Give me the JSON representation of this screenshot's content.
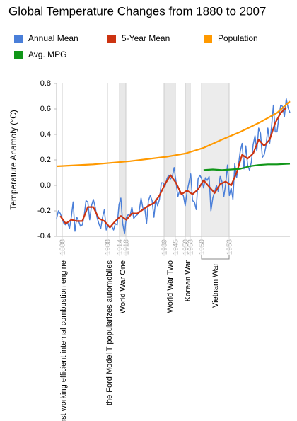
{
  "chart_data": {
    "type": "line",
    "title": "Global Temperature Changes from 1880 to 2007",
    "y_label": "Temperature Anamoly (°C)",
    "xlim": [
      1880,
      2007
    ],
    "ylim": [
      -0.4,
      0.8
    ],
    "yticks": [
      0.8,
      0.6,
      0.4,
      0.2,
      {
        "value": 0,
        "label": "0.0"
      },
      -0.2,
      -0.4
    ],
    "series": [
      {
        "name": "Annual Mean",
        "color": "#4a7fd9",
        "x": [
          1880,
          1881,
          1882,
          1883,
          1884,
          1885,
          1886,
          1887,
          1888,
          1889,
          1890,
          1891,
          1892,
          1893,
          1894,
          1895,
          1896,
          1897,
          1898,
          1899,
          1900,
          1901,
          1902,
          1903,
          1904,
          1905,
          1906,
          1907,
          1908,
          1909,
          1910,
          1911,
          1912,
          1913,
          1914,
          1915,
          1916,
          1917,
          1918,
          1919,
          1920,
          1921,
          1922,
          1923,
          1924,
          1925,
          1926,
          1927,
          1928,
          1929,
          1930,
          1931,
          1932,
          1933,
          1934,
          1935,
          1936,
          1937,
          1938,
          1939,
          1940,
          1941,
          1942,
          1943,
          1944,
          1945,
          1946,
          1947,
          1948,
          1949,
          1950,
          1951,
          1952,
          1953,
          1954,
          1955,
          1956,
          1957,
          1958,
          1959,
          1960,
          1961,
          1962,
          1963,
          1964,
          1965,
          1966,
          1967,
          1968,
          1969,
          1970,
          1971,
          1972,
          1973,
          1974,
          1975,
          1976,
          1977,
          1978,
          1979,
          1980,
          1981,
          1982,
          1983,
          1984,
          1985,
          1986,
          1987,
          1988,
          1989,
          1990,
          1991,
          1992,
          1993,
          1994,
          1995,
          1996,
          1997,
          1998,
          1999,
          2000,
          2001,
          2002,
          2003,
          2004,
          2005,
          2006,
          2007
        ],
        "values": [
          -0.26,
          -0.2,
          -0.22,
          -0.26,
          -0.3,
          -0.31,
          -0.29,
          -0.34,
          -0.25,
          -0.13,
          -0.36,
          -0.25,
          -0.28,
          -0.32,
          -0.31,
          -0.24,
          -0.12,
          -0.13,
          -0.27,
          -0.16,
          -0.11,
          -0.17,
          -0.25,
          -0.3,
          -0.34,
          -0.25,
          -0.19,
          -0.35,
          -0.32,
          -0.33,
          -0.32,
          -0.35,
          -0.3,
          -0.31,
          -0.15,
          -0.1,
          -0.3,
          -0.38,
          -0.25,
          -0.23,
          -0.24,
          -0.17,
          -0.26,
          -0.24,
          -0.23,
          -0.2,
          -0.1,
          -0.18,
          -0.18,
          -0.3,
          -0.12,
          -0.08,
          -0.12,
          -0.25,
          -0.11,
          -0.16,
          -0.11,
          0.02,
          0.02,
          -0.01,
          0.05,
          0.08,
          0.05,
          0.07,
          0.14,
          0.03,
          -0.09,
          -0.04,
          -0.07,
          -0.08,
          -0.16,
          -0.05,
          0.02,
          0.09,
          -0.12,
          -0.13,
          -0.19,
          0.05,
          0.08,
          0.05,
          -0.02,
          0.06,
          0.04,
          0.07,
          -0.2,
          -0.1,
          -0.05,
          0,
          -0.05,
          0.07,
          0.03,
          -0.09,
          0.01,
          0.16,
          -0.08,
          -0.02,
          -0.11,
          0.17,
          0.06,
          0.16,
          0.27,
          0.33,
          0.13,
          0.31,
          0.16,
          0.12,
          0.18,
          0.32,
          0.39,
          0.27,
          0.45,
          0.41,
          0.22,
          0.24,
          0.31,
          0.45,
          0.33,
          0.46,
          0.63,
          0.42,
          0.42,
          0.54,
          0.63,
          0.62,
          0.54,
          0.68,
          0.61,
          0.57
        ]
      },
      {
        "name": "5-Year Mean",
        "color": "#cc3311",
        "x": [
          1882,
          1885,
          1888,
          1891,
          1894,
          1897,
          1900,
          1903,
          1906,
          1909,
          1912,
          1915,
          1918,
          1921,
          1924,
          1927,
          1930,
          1933,
          1936,
          1939,
          1942,
          1945,
          1948,
          1951,
          1954,
          1957,
          1960,
          1963,
          1966,
          1969,
          1972,
          1975,
          1978,
          1981,
          1984,
          1987,
          1990,
          1993,
          1996,
          1999,
          2002,
          2005
        ],
        "values": [
          -0.24,
          -0.3,
          -0.27,
          -0.28,
          -0.28,
          -0.17,
          -0.17,
          -0.26,
          -0.28,
          -0.33,
          -0.28,
          -0.24,
          -0.27,
          -0.22,
          -0.22,
          -0.19,
          -0.16,
          -0.14,
          -0.08,
          0.01,
          0.08,
          0.02,
          -0.07,
          -0.04,
          -0.07,
          -0.03,
          0.04,
          -0.01,
          -0.06,
          0.01,
          0.03,
          0,
          0.1,
          0.24,
          0.21,
          0.25,
          0.36,
          0.31,
          0.36,
          0.49,
          0.57,
          0.61
        ]
      },
      {
        "name": "Population",
        "color": "#ff9900",
        "x": [
          1880,
          1900,
          1920,
          1940,
          1950,
          1960,
          1970,
          1980,
          1990,
          2000,
          2007
        ],
        "values": [
          0.15,
          0.165,
          0.19,
          0.225,
          0.25,
          0.295,
          0.36,
          0.42,
          0.49,
          0.57,
          0.66
        ]
      },
      {
        "name": "Avg. MPG",
        "color": "#109618",
        "x": [
          1960,
          1965,
          1970,
          1975,
          1980,
          1985,
          1990,
          1995,
          2000,
          2007
        ],
        "values": [
          0.12,
          0.125,
          0.12,
          0.125,
          0.13,
          0.15,
          0.16,
          0.165,
          0.165,
          0.17
        ]
      }
    ],
    "annotations": [
      {
        "label": "first working efficient internal combustion engine",
        "years": [
          "1888"
        ]
      },
      {
        "label": "the Ford Model T popularizes automobiles",
        "years": [
          "1908"
        ]
      },
      {
        "label": "World War One",
        "years": [
          "1914",
          "1918"
        ]
      },
      {
        "label": "World War Two",
        "years": [
          "1939",
          "1945"
        ]
      },
      {
        "label": "Korean War",
        "years": [
          "1950",
          "1953"
        ]
      },
      {
        "label": "Vietnam War",
        "years": [
          "1950",
          "1953"
        ]
      }
    ]
  }
}
